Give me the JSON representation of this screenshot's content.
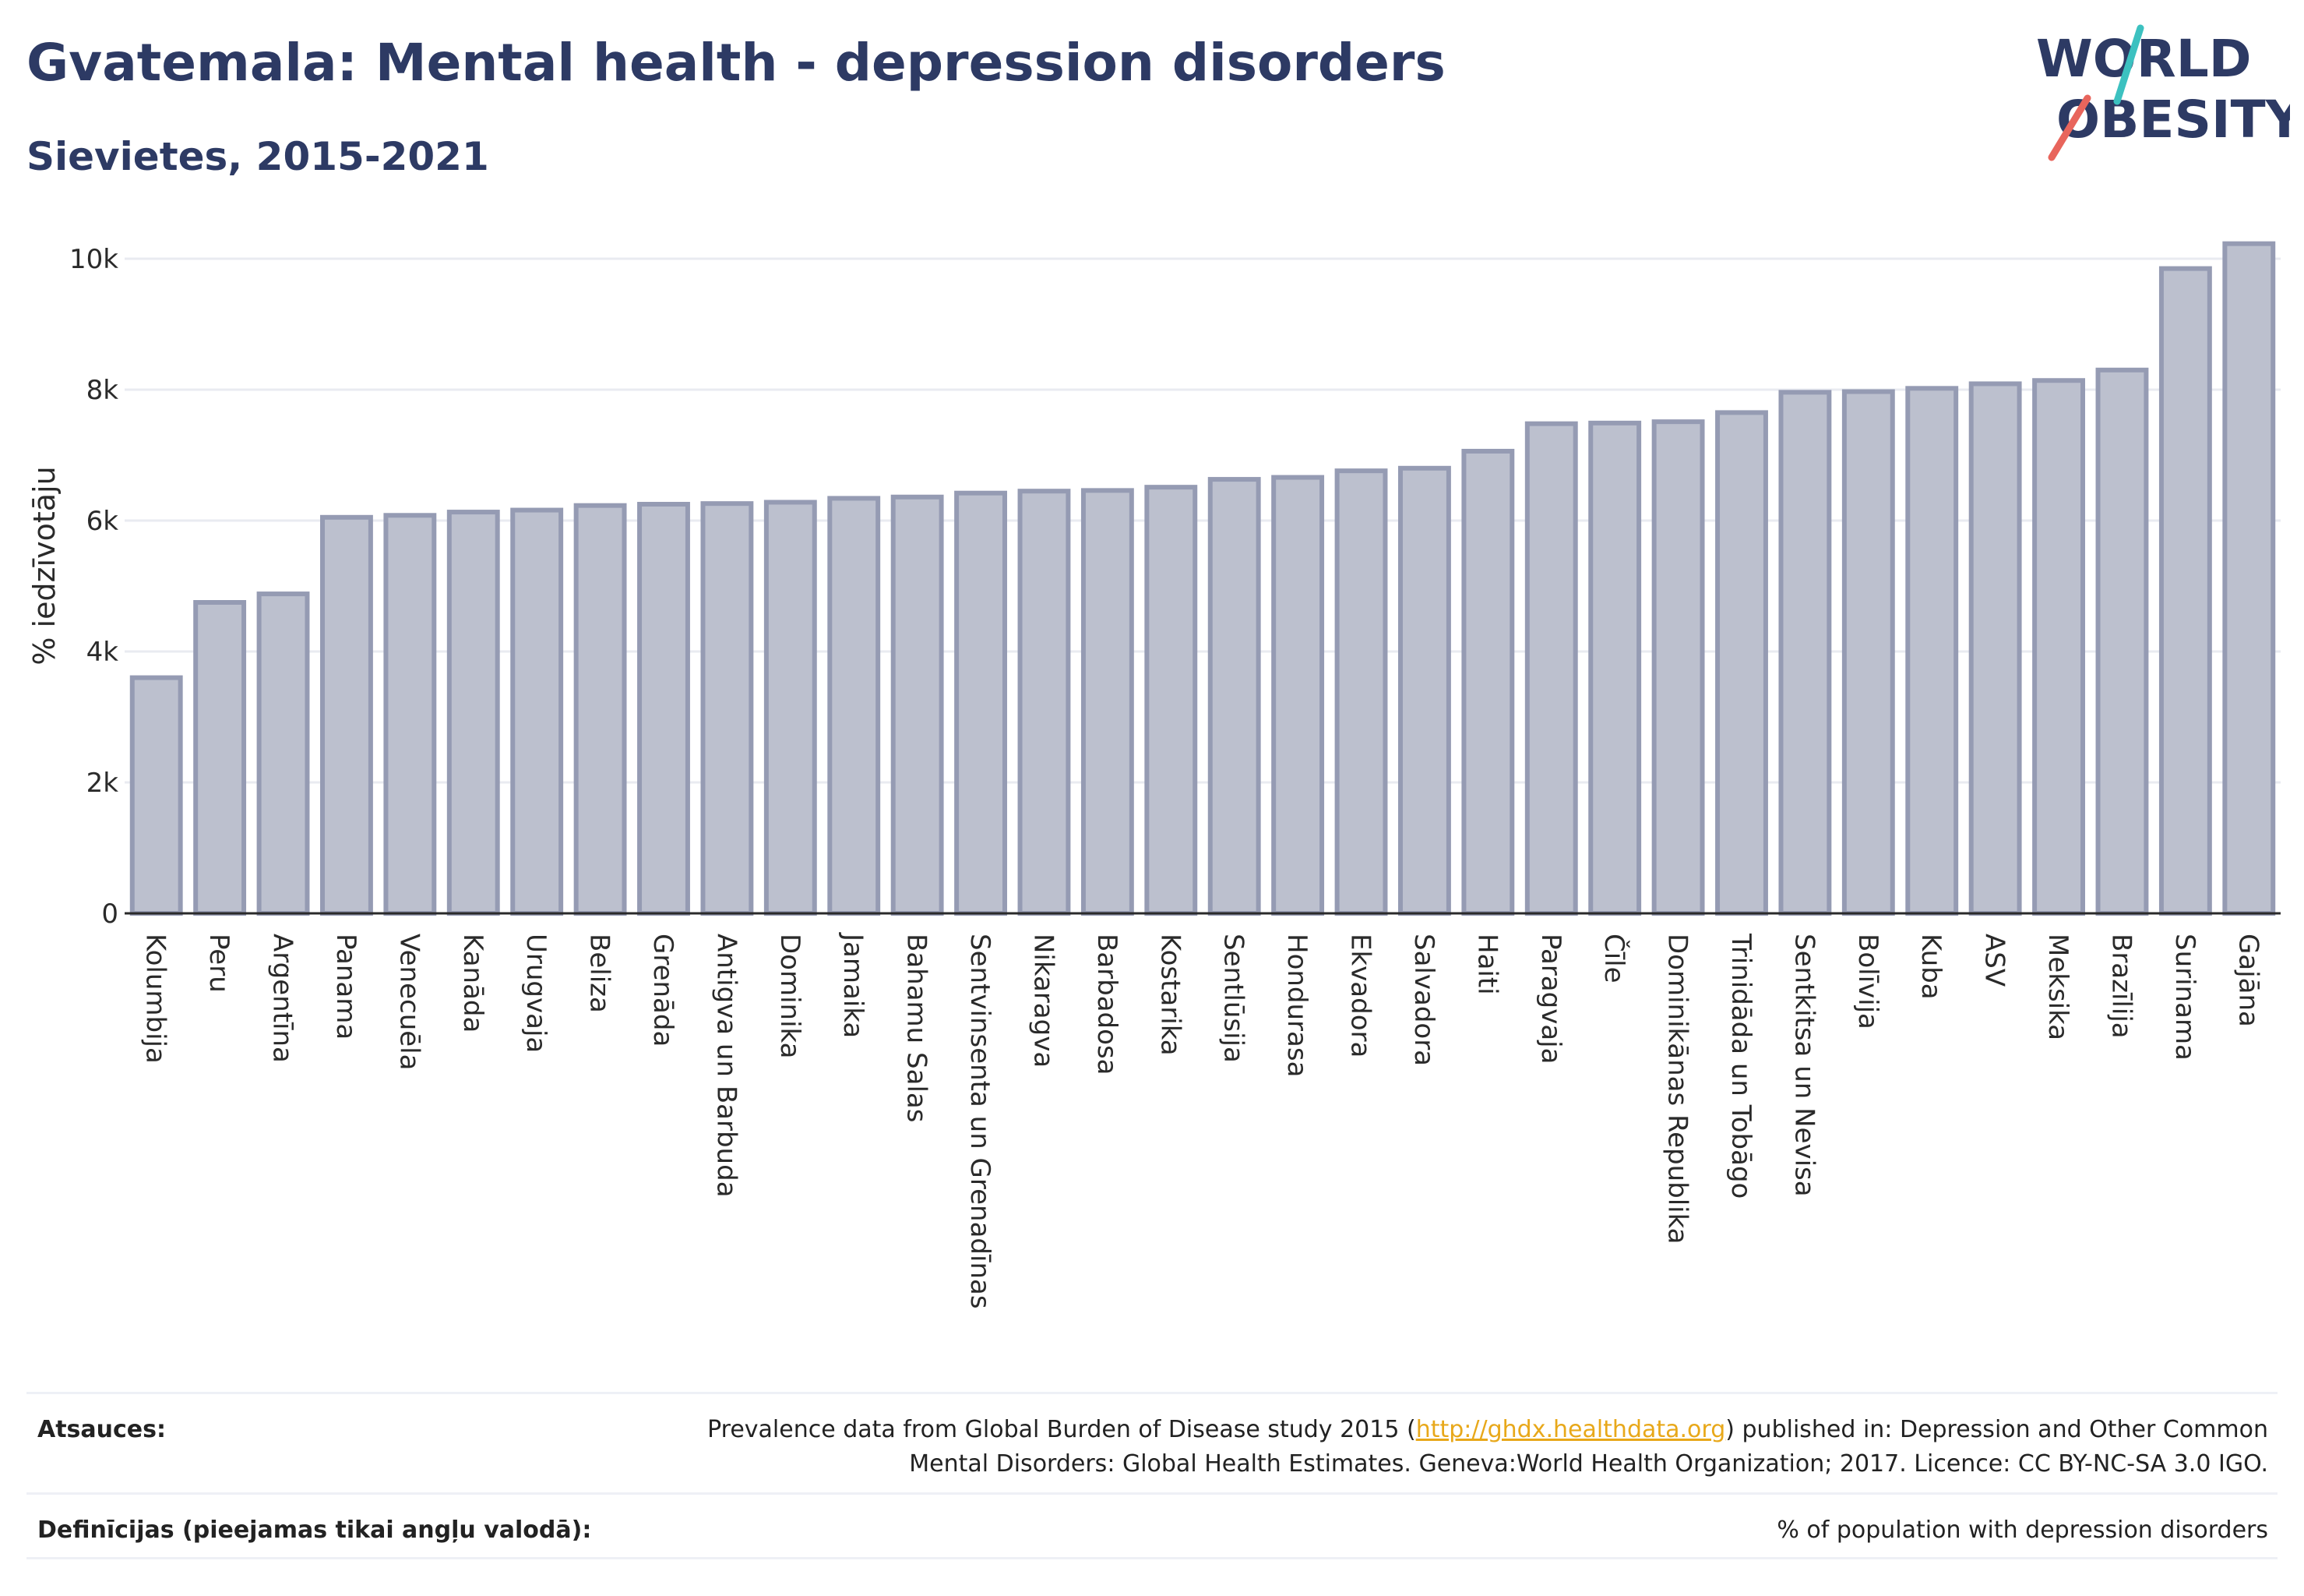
{
  "header": {
    "title": "Gvatemala: Mental health - depression disorders",
    "subtitle": "Sievietes, 2015-2021"
  },
  "logo": {
    "line1": "WORLD",
    "line2": "OBESITY",
    "name": "world-obesity-logo"
  },
  "colors": {
    "title": "#2d3a64",
    "bar_fill": "#bcc0ce",
    "bar_stroke": "#959bb3",
    "grid": "#e9ebf1",
    "logo_teal": "#3cc1c0",
    "logo_coral": "#e8655c",
    "link": "#e8a81a"
  },
  "chart_data": {
    "type": "bar",
    "ylabel": "% iedzīvotāju",
    "ylim": [
      0,
      10500
    ],
    "yticks": [
      0,
      2000,
      4000,
      6000,
      8000,
      10000
    ],
    "ytick_labels": [
      "0",
      "2k",
      "4k",
      "6k",
      "8k",
      "10k"
    ],
    "grid": true,
    "categories": [
      "Kolumbija",
      "Peru",
      "Argentīna",
      "Panama",
      "Venecuēla",
      "Kanāda",
      "Urugvaja",
      "Beliza",
      "Grenāda",
      "Antigva un Barbuda",
      "Dominika",
      "Jamaika",
      "Bahamu Salas",
      "Sentvinsenta un Grenadīnas",
      "Nikaragva",
      "Barbadosa",
      "Kostarika",
      "Sentlūsija",
      "Hondurasa",
      "Ekvadora",
      "Salvadora",
      "Haiti",
      "Paragvaja",
      "Čīle",
      "Dominikānas Republika",
      "Trinidāda un Tobāgo",
      "Sentkitsa un Nevisa",
      "Bolīvija",
      "Kuba",
      "ASV",
      "Meksika",
      "Brazīlija",
      "Surinama",
      "Gajāna"
    ],
    "values": [
      3600,
      4750,
      4880,
      6050,
      6080,
      6130,
      6160,
      6230,
      6250,
      6260,
      6280,
      6340,
      6360,
      6420,
      6450,
      6460,
      6510,
      6630,
      6660,
      6760,
      6800,
      7060,
      7480,
      7490,
      7510,
      7650,
      7960,
      7970,
      8020,
      8090,
      8140,
      8300,
      9850,
      10230
    ]
  },
  "footer": {
    "sources_label": "Atsauces:",
    "sources_text_1": "Prevalence data from Global Burden of Disease study 2015 (",
    "sources_link": "http://ghdx.healthdata.org",
    "sources_text_2": ") published in: Depression and Other Common Mental Disorders: Global Health Estimates. Geneva:World Health Organization; 2017. Licence: CC BY-NC-SA 3.0 IGO.",
    "definitions_label": "Definīcijas (pieejamas tikai angļu valodā):",
    "definitions_text": "% of population with depression disorders"
  }
}
